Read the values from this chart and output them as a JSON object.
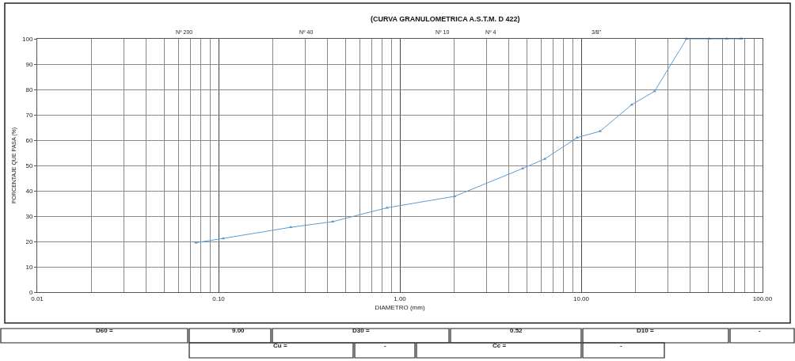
{
  "chart_data": {
    "type": "line",
    "title": "(CURVA GRANULOMETRICA A.S.T.M. D 422)",
    "xlabel": "DIAMETRO (mm)",
    "ylabel": "PORCENTAJE QUE PASA (%)",
    "log": "x",
    "x": [
      0.075,
      0.106,
      0.25,
      0.425,
      0.85,
      2.0,
      4.75,
      6.3,
      9.5,
      12.7,
      19.0,
      25.4,
      38.1,
      50.8,
      63.5,
      76.2
    ],
    "series": [
      {
        "color": "#5b9bd5",
        "values": [
          19.5,
          21.2,
          25.6,
          27.8,
          33.3,
          37.8,
          48.8,
          52.6,
          61.0,
          63.5,
          74.0,
          79.3,
          100,
          100,
          100,
          100
        ]
      }
    ],
    "xlim": [
      0.01,
      100
    ],
    "xticks": [
      {
        "value": 0.01,
        "label": "0.01"
      },
      {
        "value": 0.1,
        "label": "0.10"
      },
      {
        "value": 1,
        "label": "1.00"
      },
      {
        "value": 10,
        "label": "10.00"
      },
      {
        "value": 100,
        "label": "100.00"
      }
    ],
    "ylim": [
      0,
      100
    ],
    "yticks": [
      0,
      10,
      20,
      30,
      40,
      50,
      60,
      70,
      80,
      90,
      100
    ],
    "grid": true,
    "marker": "triangle",
    "line_style": "solid",
    "annotations": [
      "Nº 200",
      "Nº 40",
      "Nº 10",
      "Nº 4",
      "3/8\"",
      "D60 =",
      "9.00",
      "D30 =",
      "0.52",
      "D10 =",
      "-",
      "Cu =",
      "-",
      "Cc =",
      "-"
    ]
  }
}
